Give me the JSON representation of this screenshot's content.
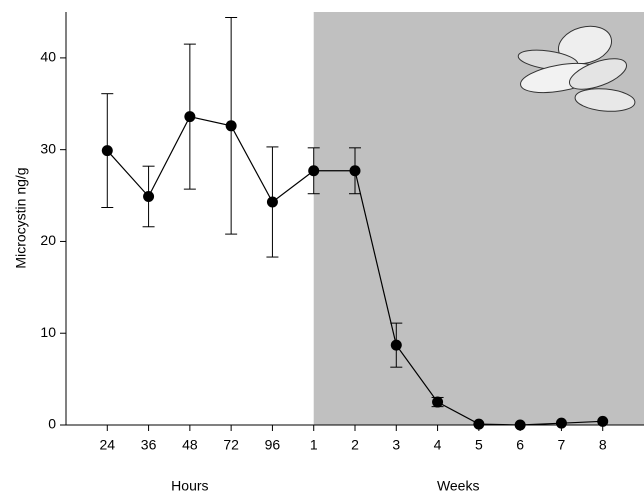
{
  "chart_data": {
    "type": "line",
    "ylabel": "Microcystin ng/g",
    "categories": [
      "24",
      "36",
      "48",
      "72",
      "96",
      "1",
      "2",
      "3",
      "4",
      "5",
      "6",
      "7",
      "8"
    ],
    "groups": [
      {
        "label": "Hours",
        "count": 5
      },
      {
        "label": "Weeks",
        "count": 8,
        "shade": "#c0c0c0"
      }
    ],
    "series": [
      {
        "color": "#000000",
        "values": [
          29.9,
          24.9,
          33.6,
          32.6,
          24.3,
          27.7,
          27.7,
          8.7,
          2.5,
          0.1,
          0,
          0.2,
          0.4
        ],
        "errors": [
          6.2,
          3.3,
          7.9,
          11.8,
          6,
          2.5,
          2.5,
          2.4,
          0.5,
          0,
          0,
          0,
          0
        ]
      }
    ],
    "ylim": [
      0,
      45
    ],
    "yticks": [
      0,
      10,
      20,
      30,
      40
    ]
  }
}
